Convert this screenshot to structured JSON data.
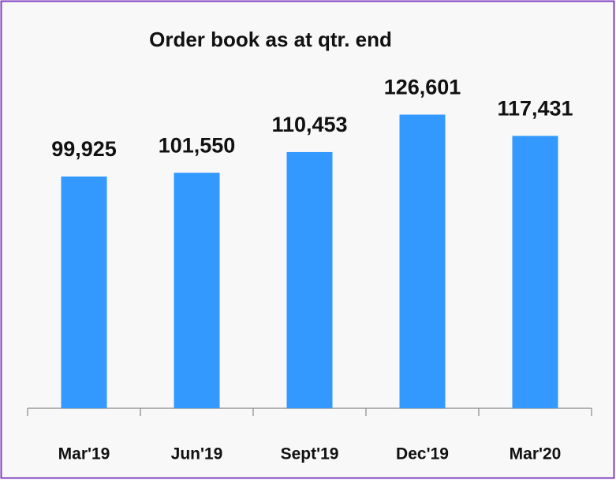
{
  "chart_data": {
    "type": "bar",
    "title": "Order book as at qtr. end",
    "categories": [
      "Mar'19",
      "Jun'19",
      "Sept'19",
      "Dec'19",
      "Mar'20"
    ],
    "values": [
      99925,
      101550,
      110453,
      126601,
      117431
    ],
    "value_labels": [
      "99,925",
      "101,550",
      "110,453",
      "126,601",
      "117,431"
    ],
    "color": "#3399ff",
    "ylim": [
      0,
      140000
    ]
  }
}
